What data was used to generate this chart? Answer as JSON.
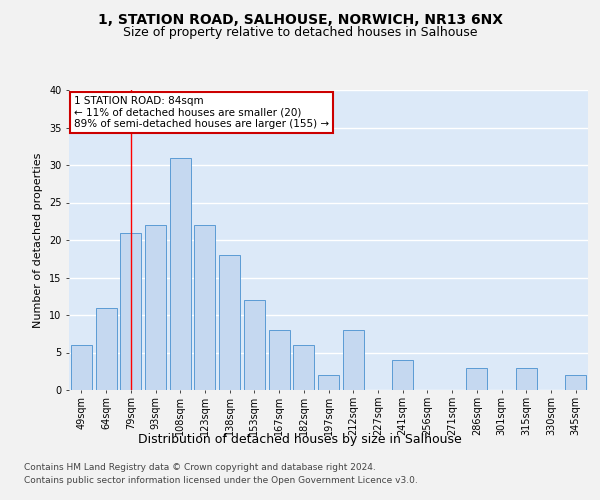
{
  "title1": "1, STATION ROAD, SALHOUSE, NORWICH, NR13 6NX",
  "title2": "Size of property relative to detached houses in Salhouse",
  "xlabel": "Distribution of detached houses by size in Salhouse",
  "ylabel": "Number of detached properties",
  "categories": [
    "49sqm",
    "64sqm",
    "79sqm",
    "93sqm",
    "108sqm",
    "123sqm",
    "138sqm",
    "153sqm",
    "167sqm",
    "182sqm",
    "197sqm",
    "212sqm",
    "227sqm",
    "241sqm",
    "256sqm",
    "271sqm",
    "286sqm",
    "301sqm",
    "315sqm",
    "330sqm",
    "345sqm"
  ],
  "values": [
    6,
    11,
    21,
    22,
    31,
    22,
    18,
    12,
    8,
    6,
    2,
    8,
    0,
    4,
    0,
    0,
    3,
    0,
    3,
    0,
    2
  ],
  "bar_color": "#c5d8f0",
  "bar_edge_color": "#5b9bd5",
  "red_line_x": 2,
  "annotation_text1": "1 STATION ROAD: 84sqm",
  "annotation_text2": "← 11% of detached houses are smaller (20)",
  "annotation_text3": "89% of semi-detached houses are larger (155) →",
  "annotation_box_color": "#ffffff",
  "annotation_border_color": "#cc0000",
  "ylim": [
    0,
    40
  ],
  "yticks": [
    0,
    5,
    10,
    15,
    20,
    25,
    30,
    35,
    40
  ],
  "footer1": "Contains HM Land Registry data © Crown copyright and database right 2024.",
  "footer2": "Contains public sector information licensed under the Open Government Licence v3.0.",
  "bg_color": "#dce9f8",
  "fig_bg_color": "#f2f2f2",
  "grid_color": "#ffffff",
  "title_fontsize": 10,
  "subtitle_fontsize": 9,
  "ylabel_fontsize": 8,
  "xlabel_fontsize": 9,
  "tick_fontsize": 7,
  "annotation_fontsize": 7.5,
  "footer_fontsize": 6.5
}
